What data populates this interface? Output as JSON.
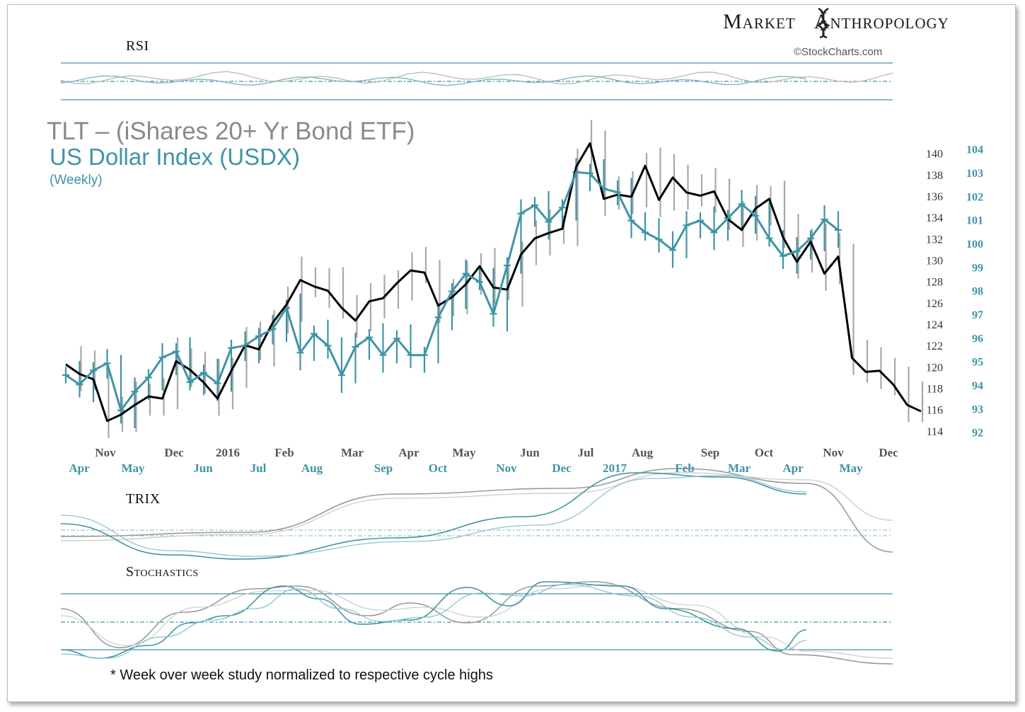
{
  "brand": {
    "left": "Market",
    "right": "Anthropology",
    "source": "©StockCharts.com"
  },
  "titles": {
    "line1": "TLT – (iShares 20+ Yr Bond ETF)",
    "line2": "US Dollar Index (USDX)",
    "line3": "(Weekly)"
  },
  "panels": {
    "rsi": "RSI",
    "trix": "TRIX",
    "stochastics": "Stochastics"
  },
  "footnote": "* Week over week study normalized to respective cycle highs",
  "colors": {
    "tlt": "#000000",
    "usdx": "#3f94a6",
    "tlt_bars": "#a8a8a8",
    "usdx_bars": "#3f94a6"
  },
  "chart_data": [
    {
      "type": "line",
      "title": "TLT – (iShares 20+ Yr Bond ETF) / US Dollar Index (USDX) (Weekly)",
      "axes": {
        "left": {
          "label": "",
          "ylim": [
            113,
            141.5
          ],
          "ticks": [
            114,
            116,
            118,
            120,
            122,
            124,
            126,
            128,
            130,
            132,
            134,
            136,
            138,
            140
          ]
        },
        "right": {
          "label": "",
          "ylim": [
            91.6,
            104.5
          ],
          "ticks": [
            92,
            93,
            94,
            95,
            96,
            97,
            98,
            99,
            100,
            101,
            102,
            103,
            104
          ]
        }
      },
      "x_top_labels": [
        "Nov",
        "Dec",
        "2016",
        "Feb",
        "Mar",
        "Apr",
        "May",
        "Jun",
        "Jul",
        "Aug",
        "Sep",
        "Oct",
        "Nov",
        "Dec"
      ],
      "x_bottom_labels": [
        "Apr",
        "May",
        "Jun",
        "Jul",
        "Aug",
        "Sep",
        "Oct",
        "Nov",
        "Dec",
        "2017",
        "Feb",
        "Mar",
        "Apr",
        "May"
      ],
      "series": [
        {
          "name": "TLT",
          "axis": "left",
          "values": [
            120.3,
            119.4,
            118.9,
            115.0,
            115.6,
            116.5,
            117.3,
            117.1,
            120.6,
            119.8,
            118.6,
            117.1,
            119.7,
            122.1,
            121.7,
            124.2,
            125.9,
            128.2,
            127.6,
            127.2,
            125.6,
            124.4,
            126.2,
            126.5,
            127.9,
            129.1,
            128.9,
            125.8,
            126.6,
            127.8,
            129.5,
            127.5,
            127.3,
            130.6,
            132.1,
            132.6,
            133.0,
            138.8,
            141.0,
            135.8,
            136.2,
            136.0,
            138.9,
            135.7,
            137.8,
            136.4,
            136.1,
            136.5,
            133.9,
            132.9,
            134.9,
            135.8,
            132.2,
            129.9,
            131.8,
            128.8,
            130.4,
            120.9,
            119.6,
            119.7,
            118.4,
            116.5,
            115.9
          ]
        },
        {
          "name": "USDX",
          "axis": "right",
          "values": [
            94.45,
            94.05,
            94.65,
            94.95,
            92.95,
            93.75,
            94.35,
            95.2,
            95.45,
            94.15,
            94.55,
            94.1,
            95.6,
            95.7,
            96.1,
            96.4,
            97.3,
            95.4,
            96.2,
            95.7,
            94.45,
            95.65,
            96.05,
            95.3,
            96.0,
            95.3,
            95.3,
            96.9,
            98.0,
            98.75,
            98.4,
            97.05,
            99.1,
            101.3,
            101.65,
            100.95,
            101.55,
            103.05,
            103.0,
            102.35,
            102.2,
            101.0,
            100.5,
            100.2,
            99.75,
            100.8,
            101.0,
            100.5,
            101.1,
            101.7,
            101.2,
            100.25,
            99.5,
            99.7,
            100.25,
            101.05,
            100.6
          ]
        }
      ]
    },
    {
      "type": "line",
      "title": "RSI",
      "series": [
        {
          "name": "",
          "values": []
        }
      ]
    },
    {
      "type": "line",
      "title": "TRIX",
      "series": [
        {
          "name": "",
          "values": []
        }
      ]
    },
    {
      "type": "line",
      "title": "Stochastics",
      "series": [
        {
          "name": "",
          "values": []
        }
      ]
    }
  ]
}
